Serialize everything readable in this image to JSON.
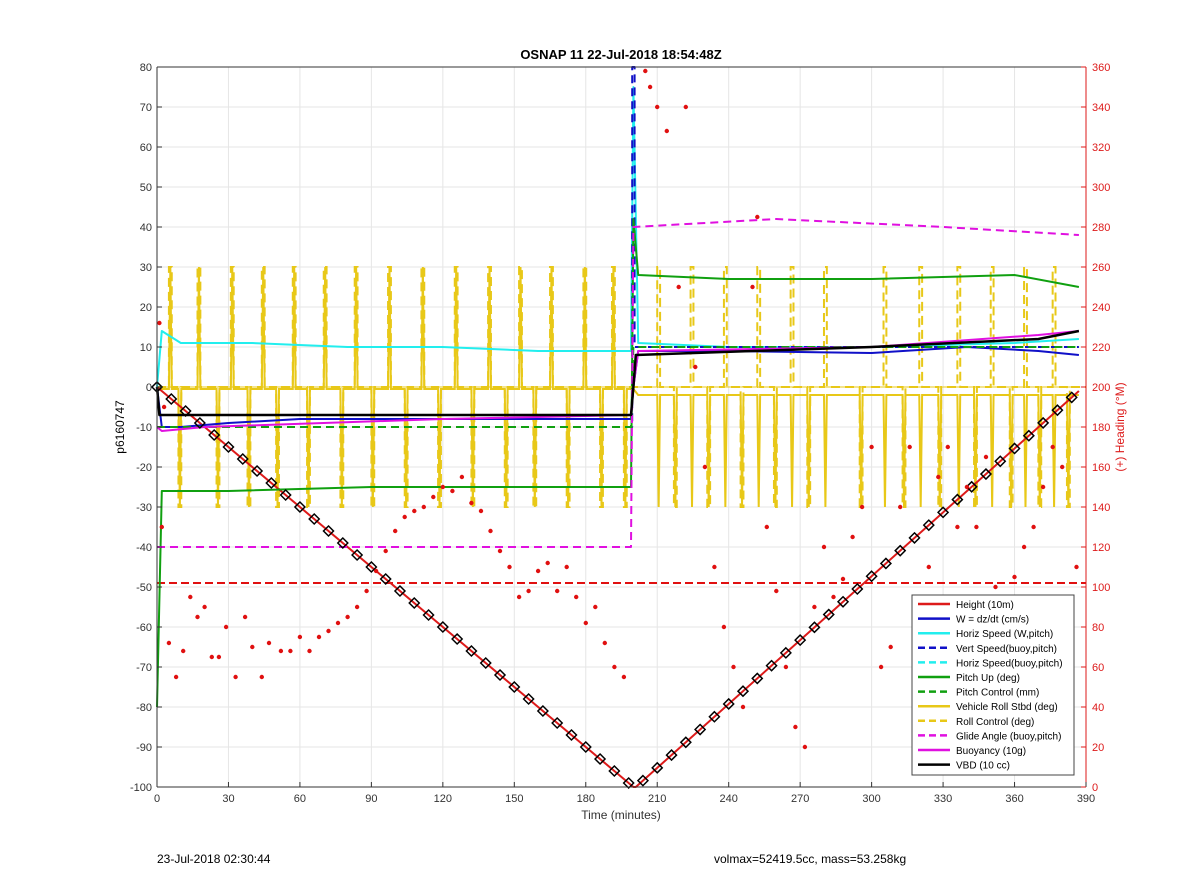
{
  "chart_data": {
    "type": "line",
    "title": "OSNAP 11 22-Jul-2018 18:54:48Z",
    "xlabel": "Time (minutes)",
    "ylabel": "p6160747",
    "ylabel_right": "(+) Heading (°M)",
    "xlim": [
      0,
      390
    ],
    "ylim": [
      -100,
      80
    ],
    "ylim_right": [
      0,
      360
    ],
    "x_ticks": [
      0,
      30,
      60,
      90,
      120,
      150,
      180,
      210,
      240,
      270,
      300,
      330,
      360,
      390
    ],
    "y_ticks": [
      -100,
      -90,
      -80,
      -70,
      -60,
      -50,
      -40,
      -30,
      -20,
      -10,
      0,
      10,
      20,
      30,
      40,
      50,
      60,
      70,
      80
    ],
    "y_ticks_right": [
      0,
      20,
      40,
      60,
      80,
      100,
      120,
      140,
      160,
      180,
      200,
      220,
      240,
      260,
      280,
      300,
      320,
      340,
      360
    ],
    "grid": true,
    "legend_position": "bottom-right",
    "colors": {
      "height": "#dd1a1a",
      "w": "#1010c8",
      "horiz": "#22eeee",
      "green": "#10a010",
      "yellow": "#e8c818",
      "magenta": "#e010e0",
      "black": "#000000",
      "heading": "#e01010"
    },
    "legend": [
      {
        "label": "Height (10m)",
        "color": "#dd1a1a",
        "dash": false
      },
      {
        "label": "W = dz/dt (cm/s)",
        "color": "#1010c8",
        "dash": false
      },
      {
        "label": "Horiz Speed (W,pitch)",
        "color": "#22eeee",
        "dash": false
      },
      {
        "label": "Vert Speed(buoy,pitch)",
        "color": "#1010c8",
        "dash": true
      },
      {
        "label": "Horiz Speed(buoy,pitch)",
        "color": "#22eeee",
        "dash": true
      },
      {
        "label": "Pitch Up (deg)",
        "color": "#10a010",
        "dash": false
      },
      {
        "label": "Pitch Control (mm)",
        "color": "#10a010",
        "dash": true
      },
      {
        "label": "Vehicle Roll Stbd (deg)",
        "color": "#e8c818",
        "dash": false
      },
      {
        "label": "Roll Control (deg)",
        "color": "#e8c818",
        "dash": true
      },
      {
        "label": "Glide Angle (buoy,pitch)",
        "color": "#e010e0",
        "dash": true
      },
      {
        "label": "Buoyancy (10g)",
        "color": "#e010e0",
        "dash": false
      },
      {
        "label": "VBD (10 cc)",
        "color": "#000000",
        "dash": false
      }
    ],
    "series": [
      {
        "name": "Height (10m)",
        "x": [
          0,
          200,
          201,
          387
        ],
        "y": [
          0,
          -100,
          -100,
          -1
        ]
      },
      {
        "name": "W = dz/dt (cm/s)",
        "x": [
          0,
          2,
          10,
          30,
          60,
          120,
          199,
          200,
          202,
          240,
          300,
          340,
          370,
          387
        ],
        "y": [
          0,
          -10,
          -10,
          -9,
          -8,
          -8,
          -8,
          0,
          9,
          9,
          8.5,
          10,
          9,
          8
        ]
      },
      {
        "name": "Horiz Speed (W,pitch)",
        "x": [
          0,
          2,
          10,
          40,
          80,
          120,
          160,
          199,
          200,
          202,
          240,
          300,
          360,
          387
        ],
        "y": [
          0,
          14,
          11,
          11,
          10,
          10,
          9,
          9,
          75,
          11,
          10,
          10,
          11,
          12
        ]
      },
      {
        "name": "Vert Speed(buoy,pitch)",
        "x": [
          0,
          199.5,
          199.5,
          200.5,
          200.5,
          387
        ],
        "y": [
          -10,
          -10,
          80,
          80,
          10,
          10
        ]
      },
      {
        "name": "Pitch Up (deg)",
        "x": [
          0,
          2,
          30,
          90,
          150,
          199,
          200,
          202,
          240,
          300,
          360,
          387
        ],
        "y": [
          -80,
          -26,
          -26,
          -25,
          -25,
          -25,
          42,
          28,
          27,
          27,
          28,
          25
        ]
      },
      {
        "name": "Pitch Control (mm)",
        "x": [
          0,
          2,
          199,
          200,
          202,
          387
        ],
        "y": [
          -10,
          -10,
          -10,
          10,
          10,
          10
        ]
      },
      {
        "name": "Roll Control (deg)",
        "x": [
          0,
          199,
          200,
          387
        ],
        "y": [
          0,
          0,
          0,
          0
        ]
      },
      {
        "name": "Glide Angle (buoy,pitch)",
        "x": [
          0,
          199,
          200,
          260,
          330,
          387
        ],
        "y": [
          -40,
          -40,
          40,
          42,
          40,
          38
        ]
      },
      {
        "name": "Buoyancy (10g)",
        "x": [
          0,
          2,
          20,
          120,
          199,
          200,
          202,
          300,
          370,
          387
        ],
        "y": [
          -10,
          -11,
          -10,
          -8,
          -7,
          0,
          9,
          10,
          13,
          14
        ]
      },
      {
        "name": "VBD (10 cc)",
        "x": [
          0,
          1,
          199,
          200,
          201,
          300,
          370,
          387
        ],
        "y": [
          0,
          -7,
          -7,
          0,
          8,
          10,
          12,
          14
        ]
      }
    ],
    "roll_base": -0.5,
    "roll_upper": 30,
    "roll_lower": -30,
    "roll_pre_spikes": [
      5,
      9,
      17,
      25,
      31,
      38,
      44,
      50,
      57,
      63,
      70,
      77,
      83,
      90,
      97,
      104,
      111,
      118,
      125,
      132,
      139,
      146,
      152,
      158,
      165,
      172,
      179,
      186,
      191,
      196
    ],
    "roll_post_spikes": [
      210,
      217,
      224,
      231,
      238,
      245,
      252,
      259,
      266,
      273,
      280,
      295,
      305,
      313,
      320,
      328,
      336,
      343,
      350,
      358,
      364,
      370,
      376,
      382
    ],
    "heading_ref_line": 102,
    "heading_points": [
      [
        1,
        232
      ],
      [
        2,
        130
      ],
      [
        3,
        190
      ],
      [
        5,
        72
      ],
      [
        8,
        55
      ],
      [
        11,
        68
      ],
      [
        14,
        95
      ],
      [
        17,
        85
      ],
      [
        20,
        90
      ],
      [
        23,
        65
      ],
      [
        26,
        65
      ],
      [
        29,
        80
      ],
      [
        33,
        55
      ],
      [
        37,
        85
      ],
      [
        40,
        70
      ],
      [
        44,
        55
      ],
      [
        47,
        72
      ],
      [
        52,
        68
      ],
      [
        56,
        68
      ],
      [
        60,
        75
      ],
      [
        64,
        68
      ],
      [
        68,
        75
      ],
      [
        72,
        78
      ],
      [
        76,
        82
      ],
      [
        80,
        85
      ],
      [
        84,
        90
      ],
      [
        88,
        98
      ],
      [
        92,
        108
      ],
      [
        96,
        118
      ],
      [
        100,
        128
      ],
      [
        104,
        135
      ],
      [
        108,
        138
      ],
      [
        112,
        140
      ],
      [
        116,
        145
      ],
      [
        120,
        150
      ],
      [
        124,
        148
      ],
      [
        128,
        155
      ],
      [
        132,
        142
      ],
      [
        136,
        138
      ],
      [
        140,
        128
      ],
      [
        144,
        118
      ],
      [
        148,
        110
      ],
      [
        152,
        95
      ],
      [
        156,
        98
      ],
      [
        160,
        108
      ],
      [
        164,
        112
      ],
      [
        168,
        98
      ],
      [
        172,
        110
      ],
      [
        176,
        95
      ],
      [
        180,
        82
      ],
      [
        184,
        90
      ],
      [
        188,
        72
      ],
      [
        192,
        60
      ],
      [
        196,
        55
      ],
      [
        205,
        358
      ],
      [
        207,
        350
      ],
      [
        210,
        340
      ],
      [
        214,
        328
      ],
      [
        219,
        250
      ],
      [
        222,
        340
      ],
      [
        226,
        210
      ],
      [
        230,
        160
      ],
      [
        234,
        110
      ],
      [
        238,
        80
      ],
      [
        242,
        60
      ],
      [
        246,
        40
      ],
      [
        250,
        250
      ],
      [
        252,
        285
      ],
      [
        256,
        130
      ],
      [
        260,
        98
      ],
      [
        264,
        60
      ],
      [
        268,
        30
      ],
      [
        272,
        20
      ],
      [
        276,
        90
      ],
      [
        280,
        120
      ],
      [
        284,
        95
      ],
      [
        288,
        104
      ],
      [
        292,
        125
      ],
      [
        296,
        140
      ],
      [
        300,
        170
      ],
      [
        304,
        60
      ],
      [
        308,
        70
      ],
      [
        312,
        140
      ],
      [
        316,
        170
      ],
      [
        320,
        95
      ],
      [
        324,
        110
      ],
      [
        328,
        155
      ],
      [
        332,
        170
      ],
      [
        336,
        130
      ],
      [
        340,
        150
      ],
      [
        344,
        130
      ],
      [
        348,
        165
      ],
      [
        352,
        100
      ],
      [
        356,
        95
      ],
      [
        360,
        105
      ],
      [
        364,
        120
      ],
      [
        368,
        130
      ],
      [
        372,
        150
      ],
      [
        376,
        170
      ],
      [
        380,
        160
      ],
      [
        383,
        95
      ],
      [
        386,
        110
      ]
    ]
  },
  "footer": {
    "timestamp": "23-Jul-2018 02:30:44",
    "vol_mass": "volmax=52419.5cc, mass=53.258kg"
  }
}
